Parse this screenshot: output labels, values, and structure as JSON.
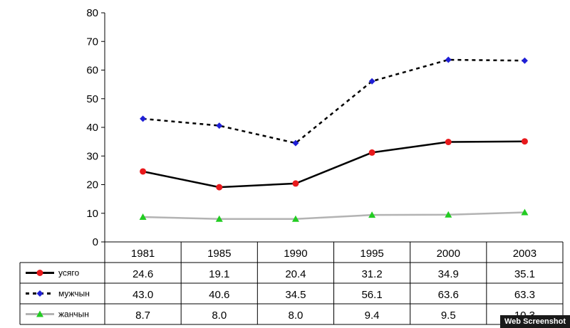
{
  "chart_data": {
    "type": "line",
    "categories": [
      "1981",
      "1985",
      "1990",
      "1995",
      "2000",
      "2003"
    ],
    "ylim": [
      0,
      80
    ],
    "yticks": [
      0,
      10,
      20,
      30,
      40,
      50,
      60,
      70,
      80
    ],
    "grid": false,
    "legend_placement": "data-table",
    "series": [
      {
        "name": "усяго",
        "values": [
          24.6,
          19.1,
          20.4,
          31.2,
          34.9,
          35.1
        ],
        "labels": [
          "24.6",
          "19.1",
          "20.4",
          "31.2",
          "34.9",
          "35.1"
        ],
        "color": "#000000",
        "marker": "circle",
        "marker_color": "#e8191c",
        "line_style": "solid"
      },
      {
        "name": "мужчын",
        "values": [
          43.0,
          40.6,
          34.5,
          56.1,
          63.6,
          63.3
        ],
        "labels": [
          "43.0",
          "40.6",
          "34.5",
          "56.1",
          "63.6",
          "63.3"
        ],
        "color": "#000000",
        "marker": "diamond",
        "marker_color": "#1f1fd6",
        "line_style": "dashed"
      },
      {
        "name": "жанчын",
        "values": [
          8.7,
          8.0,
          8.0,
          9.4,
          9.5,
          10.3
        ],
        "labels": [
          "8.7",
          "8.0",
          "8.0",
          "9.4",
          "9.5",
          "10.3"
        ],
        "color": "#b3b3b3",
        "marker": "triangle",
        "marker_color": "#22cc22",
        "line_style": "solid"
      }
    ]
  },
  "watermark": "Web Screenshot"
}
